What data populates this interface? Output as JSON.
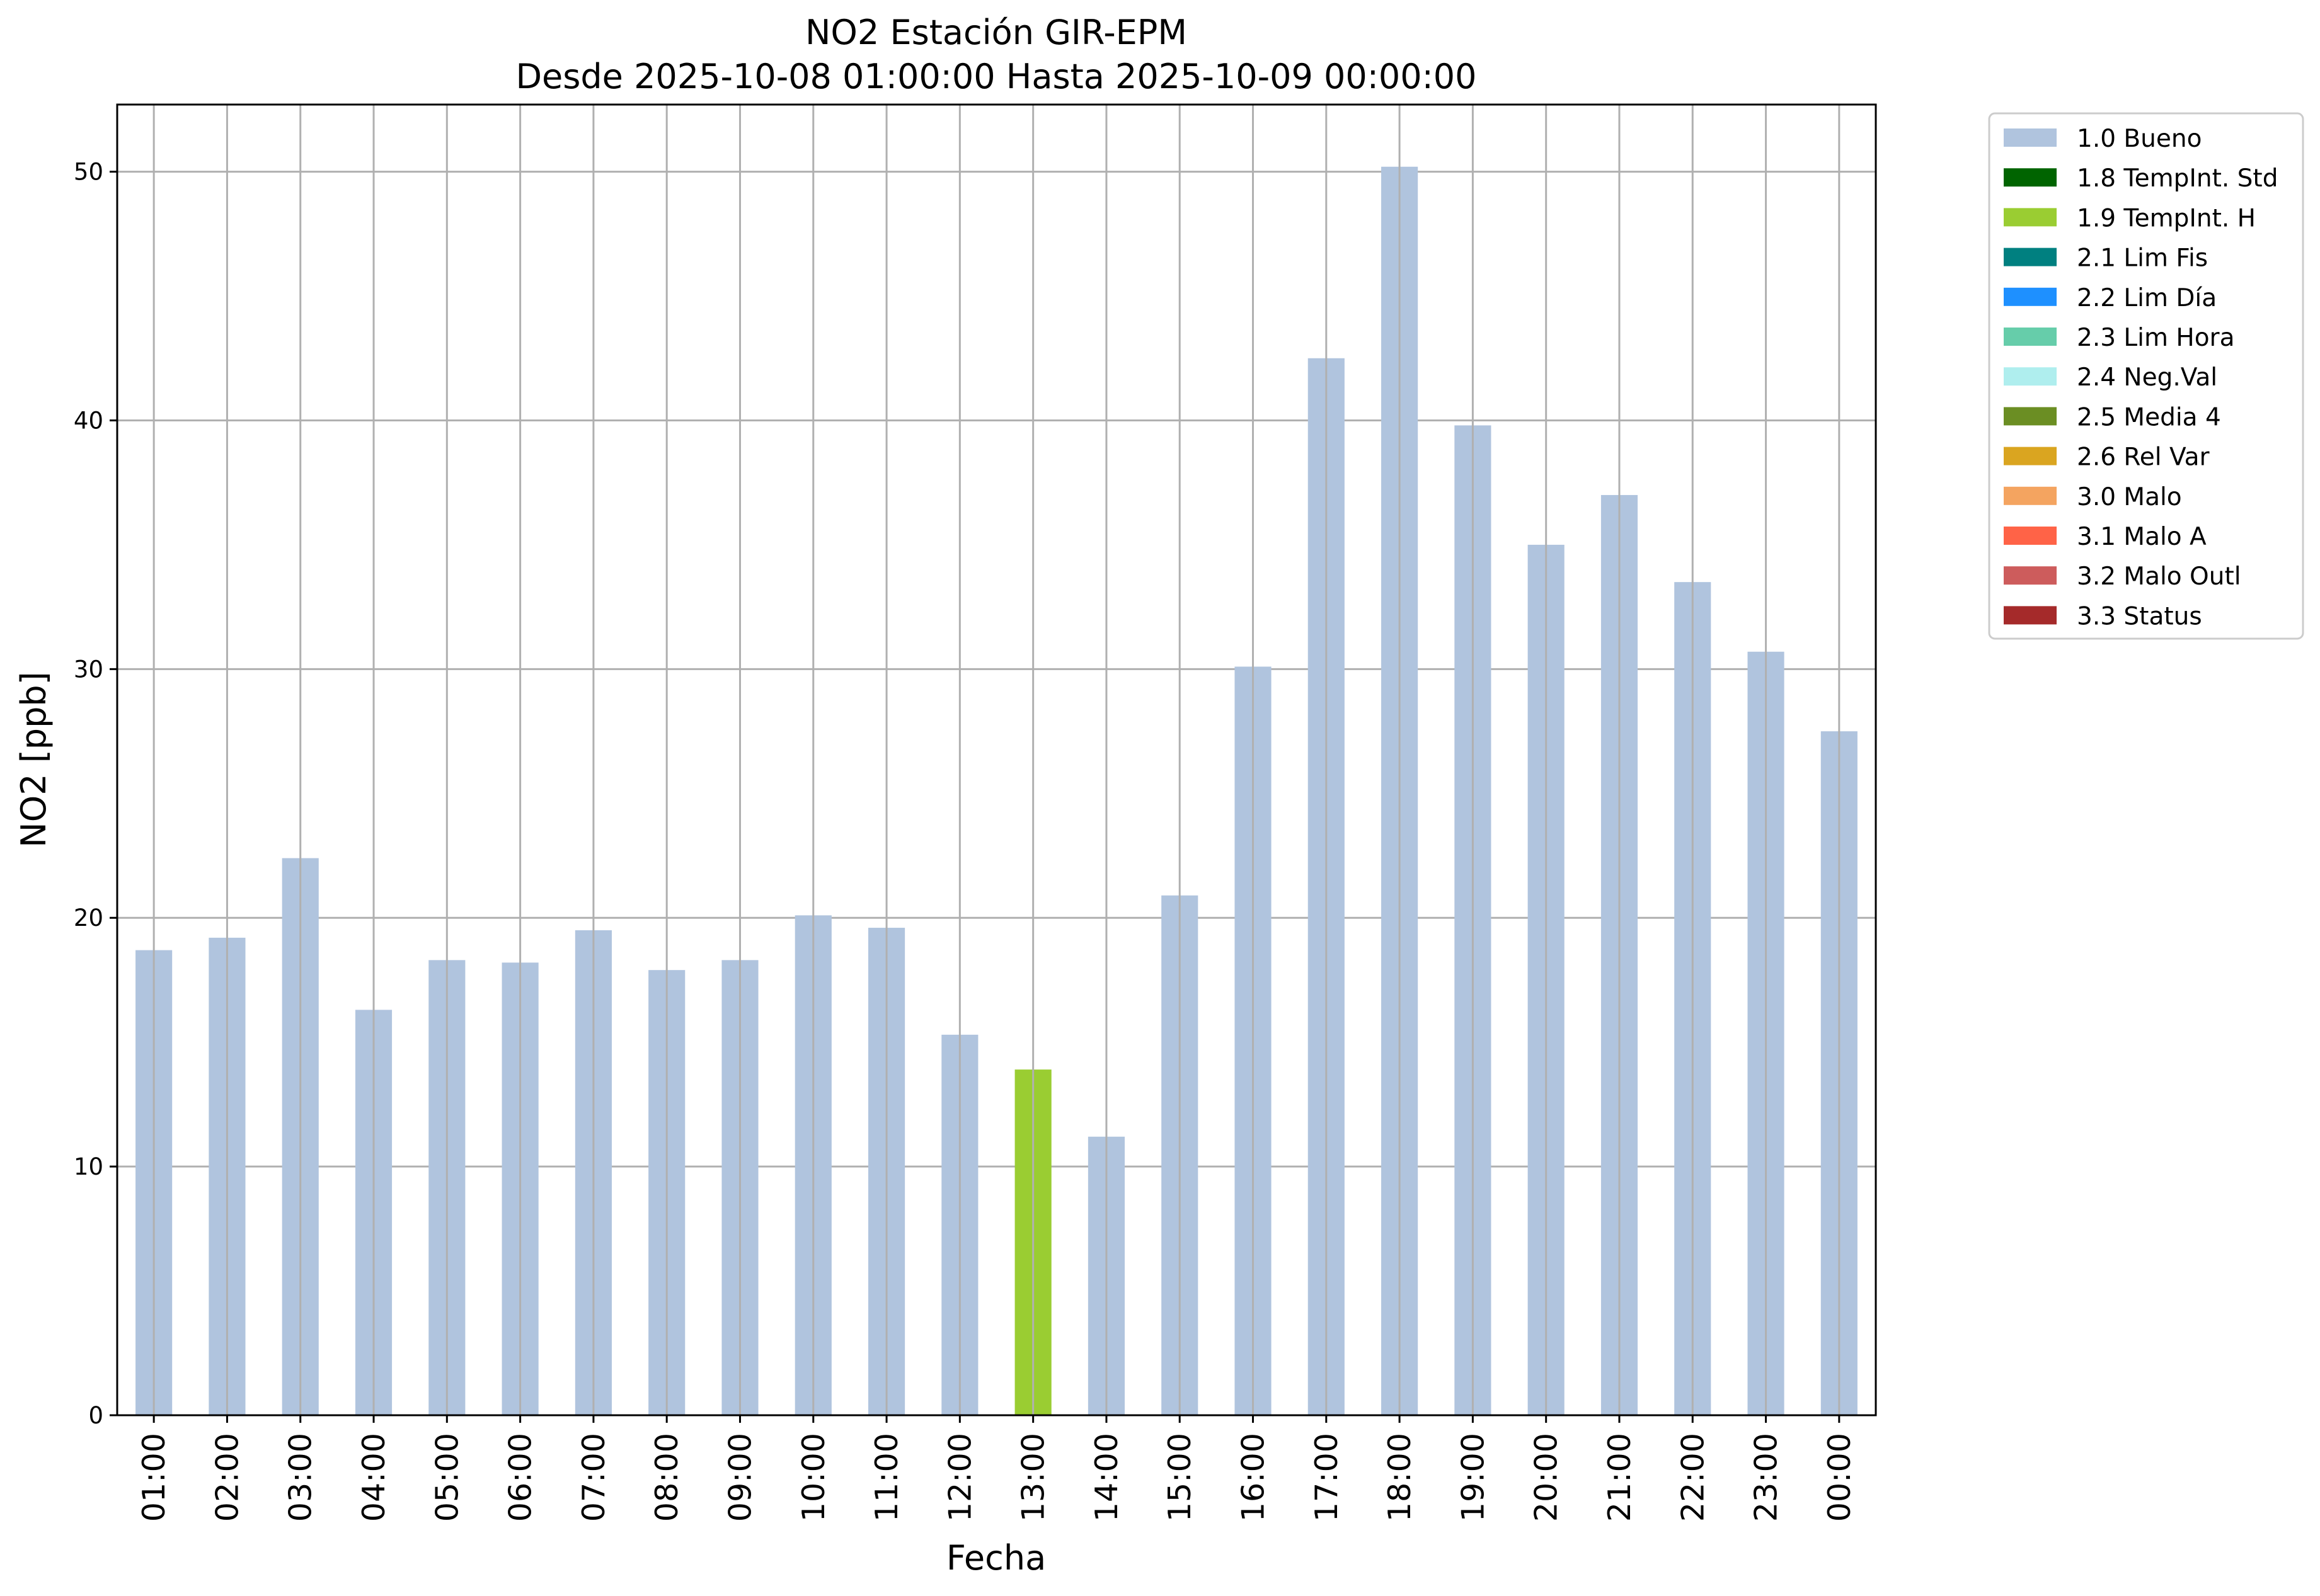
{
  "chart_data": {
    "type": "bar",
    "title": "NO2 Estación GIR-EPM",
    "subtitle": "Desde 2025-10-08 01:00:00 Hasta 2025-10-09 00:00:00",
    "xlabel": "Fecha",
    "ylabel": "NO2 [ppb]",
    "ylim": [
      0,
      52.7
    ],
    "yticks": [
      0,
      10,
      20,
      30,
      40,
      50
    ],
    "grid": true,
    "legend_position": "outside-top-right",
    "categories": [
      "01:00",
      "02:00",
      "03:00",
      "04:00",
      "05:00",
      "06:00",
      "07:00",
      "08:00",
      "09:00",
      "10:00",
      "11:00",
      "12:00",
      "13:00",
      "14:00",
      "15:00",
      "16:00",
      "17:00",
      "18:00",
      "19:00",
      "20:00",
      "21:00",
      "22:00",
      "23:00",
      "00:00"
    ],
    "values": [
      18.7,
      19.2,
      22.4,
      16.3,
      18.3,
      18.2,
      19.5,
      17.9,
      18.3,
      20.1,
      19.6,
      15.3,
      13.9,
      11.2,
      20.9,
      30.1,
      42.5,
      50.2,
      39.8,
      35.0,
      37.0,
      33.5,
      30.7,
      27.5
    ],
    "flags": [
      "1.0 Bueno",
      "1.0 Bueno",
      "1.0 Bueno",
      "1.0 Bueno",
      "1.0 Bueno",
      "1.0 Bueno",
      "1.0 Bueno",
      "1.0 Bueno",
      "1.0 Bueno",
      "1.0 Bueno",
      "1.0 Bueno",
      "1.0 Bueno",
      "1.9 TempInt. H",
      "1.0 Bueno",
      "1.0 Bueno",
      "1.0 Bueno",
      "1.0 Bueno",
      "1.0 Bueno",
      "1.0 Bueno",
      "1.0 Bueno",
      "1.0 Bueno",
      "1.0 Bueno",
      "1.0 Bueno",
      "1.0 Bueno"
    ],
    "legend": [
      {
        "label": "1.0 Bueno",
        "color": "#b0c4de"
      },
      {
        "label": "1.8 TempInt. Std",
        "color": "#006400"
      },
      {
        "label": "1.9 TempInt. H",
        "color": "#9acd32"
      },
      {
        "label": "2.1 Lim Fis",
        "color": "#008080"
      },
      {
        "label": "2.2 Lim Día",
        "color": "#1e90ff"
      },
      {
        "label": "2.3 Lim Hora",
        "color": "#66cdaa"
      },
      {
        "label": "2.4 Neg.Val",
        "color": "#afeeee"
      },
      {
        "label": "2.5 Media 4",
        "color": "#6b8e23"
      },
      {
        "label": "2.6 Rel Var",
        "color": "#daa520"
      },
      {
        "label": "3.0 Malo",
        "color": "#f4a460"
      },
      {
        "label": "3.1 Malo A",
        "color": "#ff6347"
      },
      {
        "label": "3.2 Malo Outl",
        "color": "#cd5c5c"
      },
      {
        "label": "3.3 Status",
        "color": "#a52a2a"
      }
    ]
  }
}
